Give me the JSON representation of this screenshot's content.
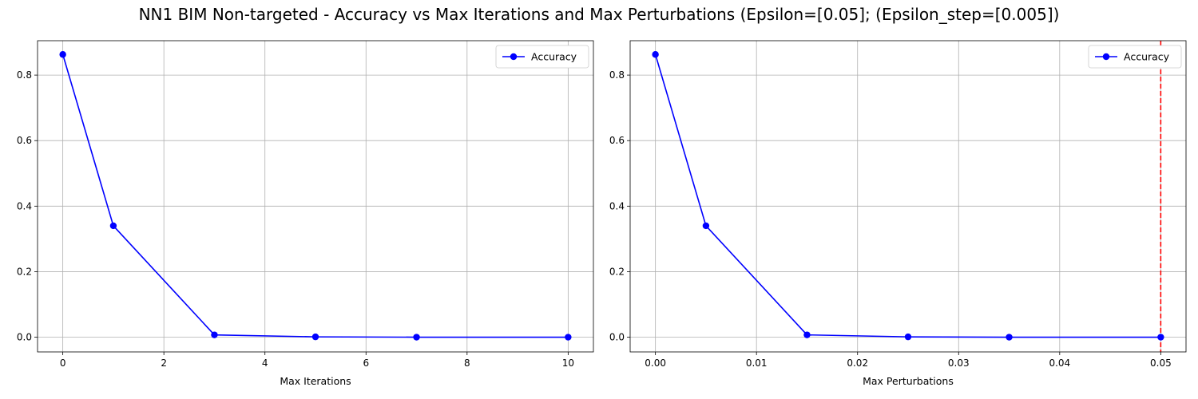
{
  "title": "NN1 BIM Non-targeted - Accuracy vs Max Iterations and Max Perturbations (Epsilon=[0.05]; (Epsilon_step=[0.005])",
  "colors": {
    "series": "#0000ff",
    "marker_line": "#ff0000",
    "grid": "#b0b0b0"
  },
  "chart_data": [
    {
      "type": "line",
      "xlabel": "Max Iterations",
      "ylabel": "",
      "x": [
        0,
        1,
        3,
        5,
        7,
        10
      ],
      "series": [
        {
          "name": "Accuracy",
          "values": [
            0.863,
            0.34,
            0.007,
            0.001,
            0.0,
            0.0
          ]
        }
      ],
      "xlim": [
        -0.5,
        10.5
      ],
      "ylim": [
        -0.045,
        0.905
      ],
      "xticks": [
        0,
        2,
        4,
        6,
        8,
        10
      ],
      "xtick_labels": [
        "0",
        "2",
        "4",
        "6",
        "8",
        "10"
      ],
      "yticks": [
        0.0,
        0.2,
        0.4,
        0.6,
        0.8
      ],
      "ytick_labels": [
        "0.0",
        "0.2",
        "0.4",
        "0.6",
        "0.8"
      ],
      "grid": true,
      "legend": "upper right"
    },
    {
      "type": "line",
      "xlabel": "Max Perturbations",
      "ylabel": "",
      "x": [
        0.0,
        0.005,
        0.015,
        0.025,
        0.035,
        0.05
      ],
      "series": [
        {
          "name": "Accuracy",
          "values": [
            0.863,
            0.34,
            0.007,
            0.001,
            0.0,
            0.0
          ]
        }
      ],
      "xlim": [
        -0.0025,
        0.0525
      ],
      "ylim": [
        -0.045,
        0.905
      ],
      "xticks": [
        0.0,
        0.01,
        0.02,
        0.03,
        0.04,
        0.05
      ],
      "xtick_labels": [
        "0.00",
        "0.01",
        "0.02",
        "0.03",
        "0.04",
        "0.05"
      ],
      "yticks": [
        0.0,
        0.2,
        0.4,
        0.6,
        0.8
      ],
      "ytick_labels": [
        "0.0",
        "0.2",
        "0.4",
        "0.6",
        "0.8"
      ],
      "grid": true,
      "legend": "upper right",
      "vline": {
        "x": 0.05,
        "style": "dashed"
      }
    }
  ]
}
